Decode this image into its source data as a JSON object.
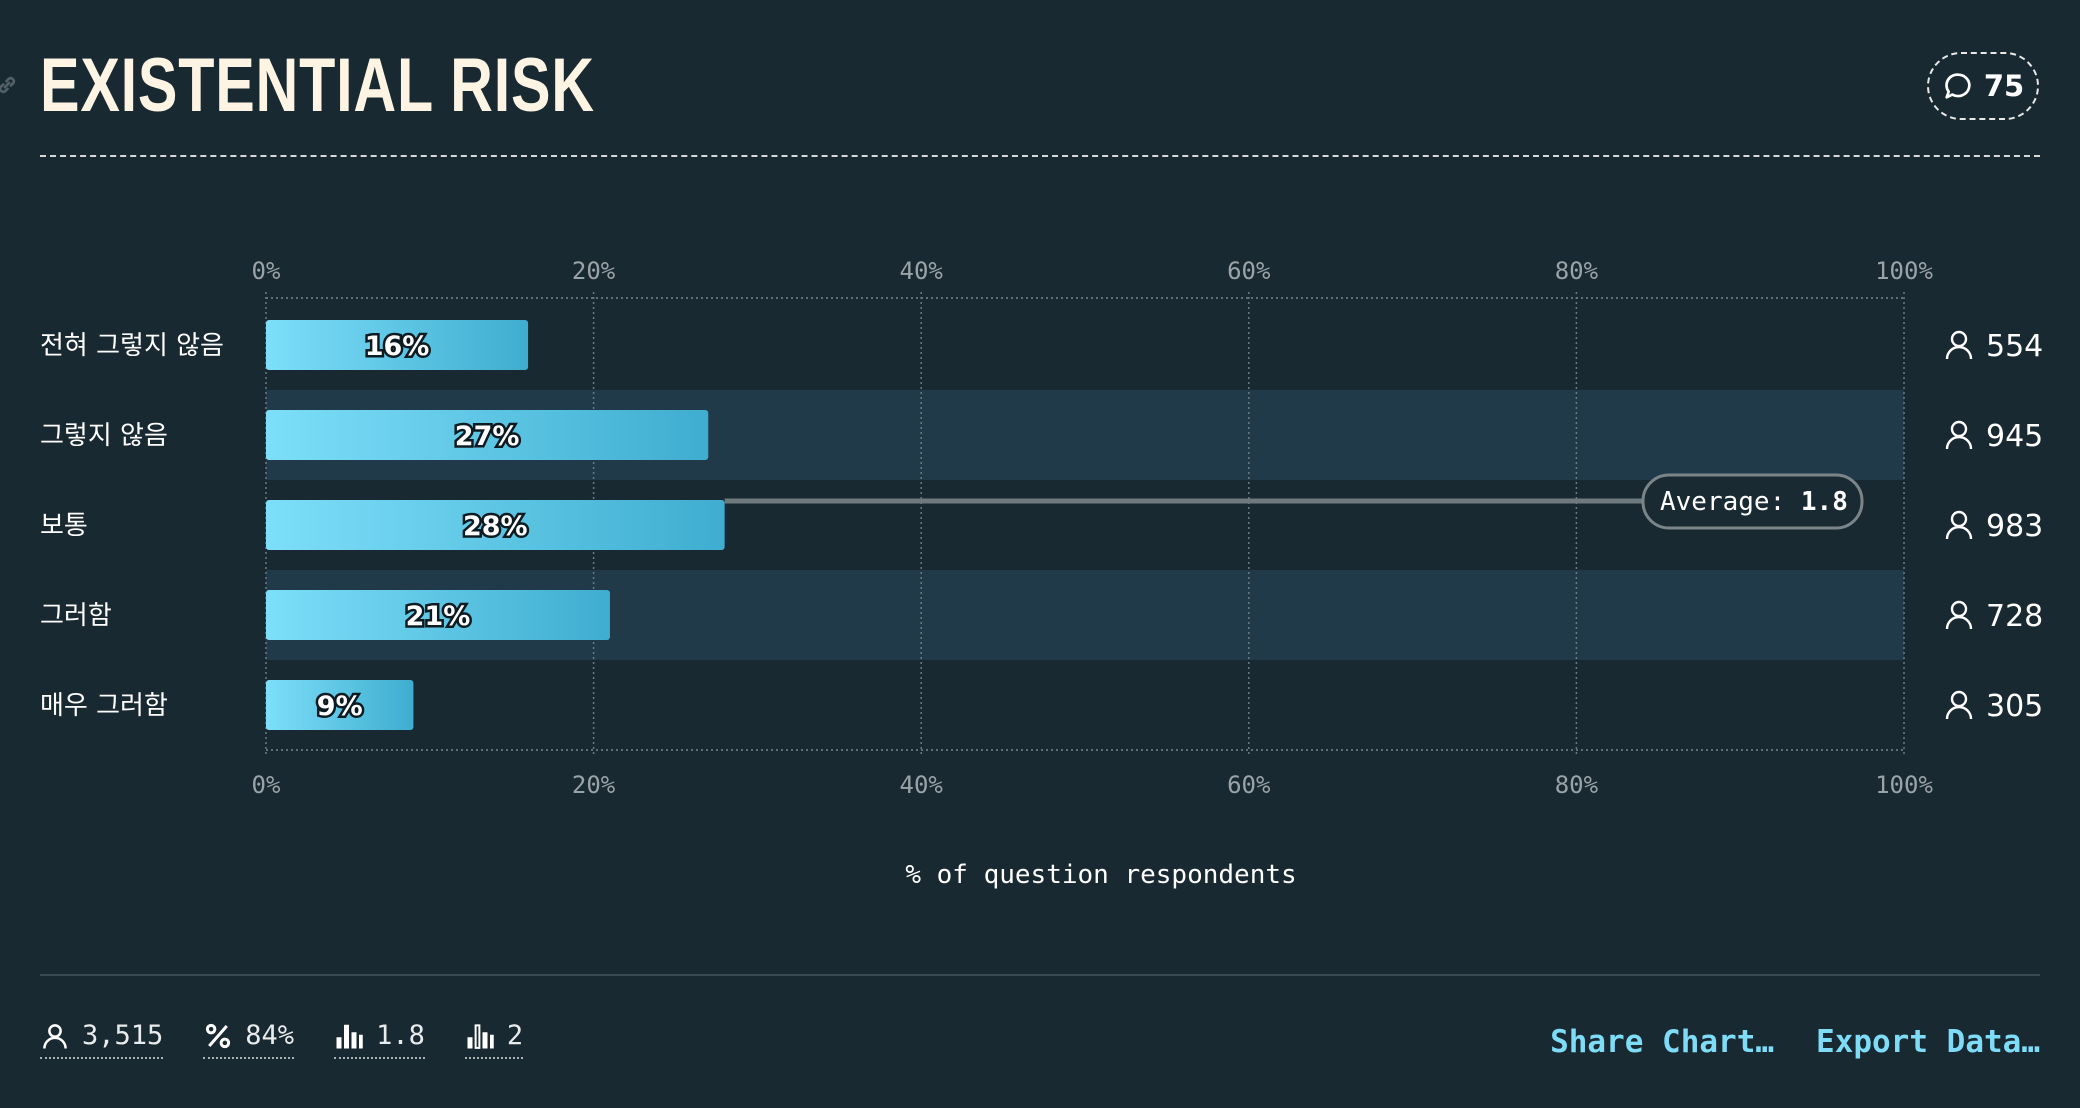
{
  "title": "EXISTENTIAL RISK",
  "comment_count": "75",
  "chart_data": {
    "type": "bar",
    "orientation": "horizontal",
    "categories": [
      "전혀 그렇지 않음",
      "그렇지 않음",
      "보통",
      "그러함",
      "매우 그러함"
    ],
    "values": [
      16,
      27,
      28,
      21,
      9
    ],
    "value_labels": [
      "16%",
      "27%",
      "28%",
      "21%",
      "9%"
    ],
    "counts": [
      "554",
      "945",
      "983",
      "728",
      "305"
    ],
    "xlim": [
      0,
      100
    ],
    "x_ticks": [
      "0%",
      "20%",
      "40%",
      "60%",
      "80%",
      "100%"
    ],
    "xlabel": "% of question respondents",
    "grid": true,
    "average": {
      "label": "Average:",
      "value": "1.8"
    }
  },
  "stats": {
    "respondents": "3,515",
    "percent": "84%",
    "average": "1.8",
    "median": "2"
  },
  "actions": {
    "share": "Share Chart…",
    "export": "Export Data…"
  },
  "colors": {
    "background": "#192932",
    "band": "#213a4a",
    "bar_start": "#7ddff9",
    "bar_end": "#3fadd0",
    "accent": "#7fdcf7"
  }
}
